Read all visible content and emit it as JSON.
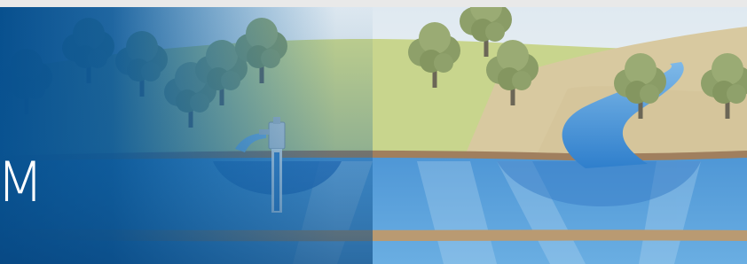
{
  "banner": {
    "title": "M"
  }
}
